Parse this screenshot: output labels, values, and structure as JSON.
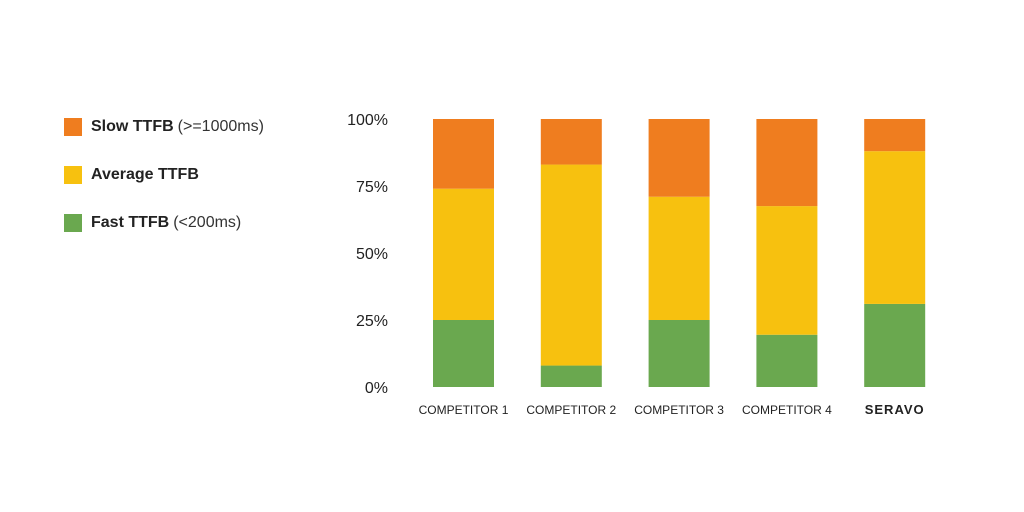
{
  "legend": [
    {
      "key": "slow",
      "name": "Slow TTFB",
      "note": "(>=1000ms)",
      "color": "#ef7d1f"
    },
    {
      "key": "average",
      "name": "Average TTFB",
      "note": "",
      "color": "#f7c10f"
    },
    {
      "key": "fast",
      "name": "Fast TTFB",
      "note": "(<200ms)",
      "color": "#6aa84f"
    }
  ],
  "chart_data": {
    "type": "bar",
    "stacked": true,
    "categories": [
      "COMPETITOR 1",
      "COMPETITOR 2",
      "COMPETITOR 3",
      "COMPETITOR 4",
      "SERAVO"
    ],
    "highlight_category": "SERAVO",
    "yticks": [
      "0%",
      "25%",
      "50%",
      "75%",
      "100%"
    ],
    "ylim": [
      0,
      100
    ],
    "series": [
      {
        "name": "Fast TTFB",
        "color": "#6aa84f",
        "values": [
          25,
          8,
          25,
          19.5,
          31
        ]
      },
      {
        "name": "Average TTFB",
        "color": "#f7c10f",
        "values": [
          49,
          75,
          46,
          48,
          57
        ]
      },
      {
        "name": "Slow TTFB",
        "color": "#ef7d1f",
        "values": [
          26,
          17,
          29,
          32.5,
          12
        ]
      }
    ],
    "grid": false,
    "legend_position": "left"
  }
}
